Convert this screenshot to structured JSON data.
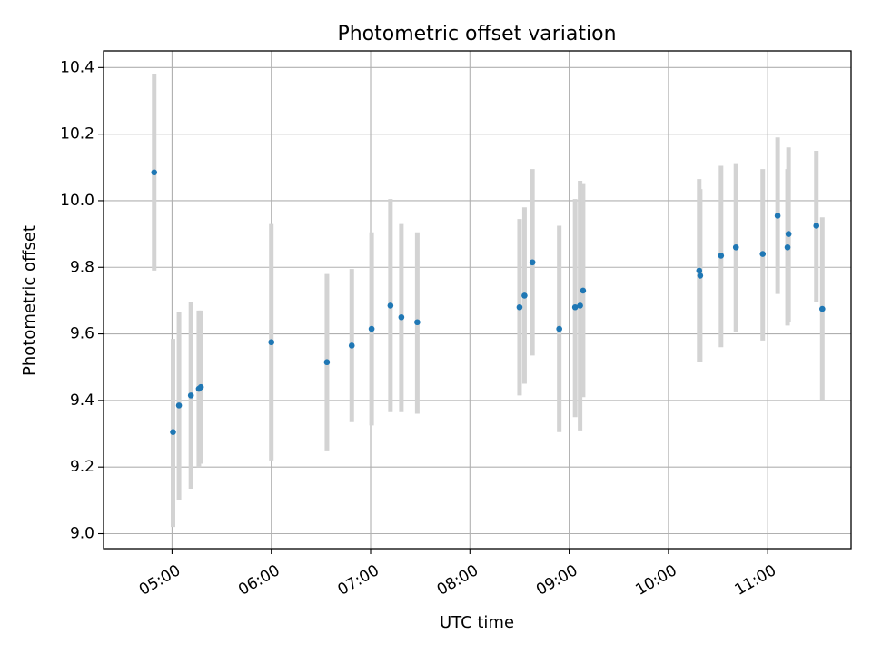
{
  "chart_data": {
    "type": "scatter",
    "title": "Photometric offset variation",
    "xlabel": "UTC time",
    "ylabel": "Photometric offset",
    "xlim_hours": [
      4.31,
      11.84
    ],
    "ylim": [
      8.955,
      10.45
    ],
    "grid": true,
    "x_ticks": [
      {
        "value": 5,
        "label": "05:00"
      },
      {
        "value": 6,
        "label": "06:00"
      },
      {
        "value": 7,
        "label": "07:00"
      },
      {
        "value": 8,
        "label": "08:00"
      },
      {
        "value": 9,
        "label": "09:00"
      },
      {
        "value": 10,
        "label": "10:00"
      },
      {
        "value": 11,
        "label": "11:00"
      }
    ],
    "y_ticks": [
      {
        "value": 9.0,
        "label": "9.0"
      },
      {
        "value": 9.2,
        "label": "9.2"
      },
      {
        "value": 9.4,
        "label": "9.4"
      },
      {
        "value": 9.6,
        "label": "9.6"
      },
      {
        "value": 9.8,
        "label": "9.8"
      },
      {
        "value": 10.0,
        "label": "10.0"
      },
      {
        "value": 10.2,
        "label": "10.2"
      },
      {
        "value": 10.4,
        "label": "10.4"
      }
    ],
    "colors": {
      "point": "#1f77b4",
      "errorbar": "#d3d3d3",
      "grid": "#b0b0b0"
    },
    "points": [
      {
        "t": 4.82,
        "y": 10.085,
        "lo": 9.79,
        "hi": 10.38
      },
      {
        "t": 5.01,
        "y": 9.305,
        "lo": 9.02,
        "hi": 9.585
      },
      {
        "t": 5.07,
        "y": 9.385,
        "lo": 9.1,
        "hi": 9.665
      },
      {
        "t": 5.19,
        "y": 9.415,
        "lo": 9.135,
        "hi": 9.695
      },
      {
        "t": 5.27,
        "y": 9.435,
        "lo": 9.2,
        "hi": 9.67
      },
      {
        "t": 5.29,
        "y": 9.44,
        "lo": 9.21,
        "hi": 9.67
      },
      {
        "t": 6.0,
        "y": 9.575,
        "lo": 9.22,
        "hi": 9.93
      },
      {
        "t": 6.56,
        "y": 9.515,
        "lo": 9.25,
        "hi": 9.78
      },
      {
        "t": 6.81,
        "y": 9.565,
        "lo": 9.335,
        "hi": 9.795
      },
      {
        "t": 7.01,
        "y": 9.615,
        "lo": 9.325,
        "hi": 9.905
      },
      {
        "t": 7.2,
        "y": 9.685,
        "lo": 9.365,
        "hi": 10.005
      },
      {
        "t": 7.31,
        "y": 9.65,
        "lo": 9.365,
        "hi": 9.93
      },
      {
        "t": 7.47,
        "y": 9.635,
        "lo": 9.36,
        "hi": 9.905
      },
      {
        "t": 8.5,
        "y": 9.68,
        "lo": 9.415,
        "hi": 9.945
      },
      {
        "t": 8.55,
        "y": 9.715,
        "lo": 9.45,
        "hi": 9.98
      },
      {
        "t": 8.63,
        "y": 9.815,
        "lo": 9.535,
        "hi": 10.095
      },
      {
        "t": 8.9,
        "y": 9.615,
        "lo": 9.305,
        "hi": 9.925
      },
      {
        "t": 9.06,
        "y": 9.68,
        "lo": 9.35,
        "hi": 10.005
      },
      {
        "t": 9.11,
        "y": 9.685,
        "lo": 9.31,
        "hi": 10.06
      },
      {
        "t": 9.14,
        "y": 9.73,
        "lo": 9.41,
        "hi": 10.05
      },
      {
        "t": 10.31,
        "y": 9.79,
        "lo": 9.515,
        "hi": 10.065
      },
      {
        "t": 10.32,
        "y": 9.775,
        "lo": 9.515,
        "hi": 10.035
      },
      {
        "t": 10.53,
        "y": 9.835,
        "lo": 9.56,
        "hi": 10.105
      },
      {
        "t": 10.68,
        "y": 9.86,
        "lo": 9.605,
        "hi": 10.11
      },
      {
        "t": 10.95,
        "y": 9.84,
        "lo": 9.58,
        "hi": 10.095
      },
      {
        "t": 11.1,
        "y": 9.955,
        "lo": 9.72,
        "hi": 10.19
      },
      {
        "t": 11.2,
        "y": 9.86,
        "lo": 9.625,
        "hi": 10.095
      },
      {
        "t": 11.21,
        "y": 9.9,
        "lo": 9.635,
        "hi": 10.16
      },
      {
        "t": 11.49,
        "y": 9.925,
        "lo": 9.695,
        "hi": 10.15
      },
      {
        "t": 11.55,
        "y": 9.675,
        "lo": 9.4,
        "hi": 9.95
      }
    ]
  }
}
